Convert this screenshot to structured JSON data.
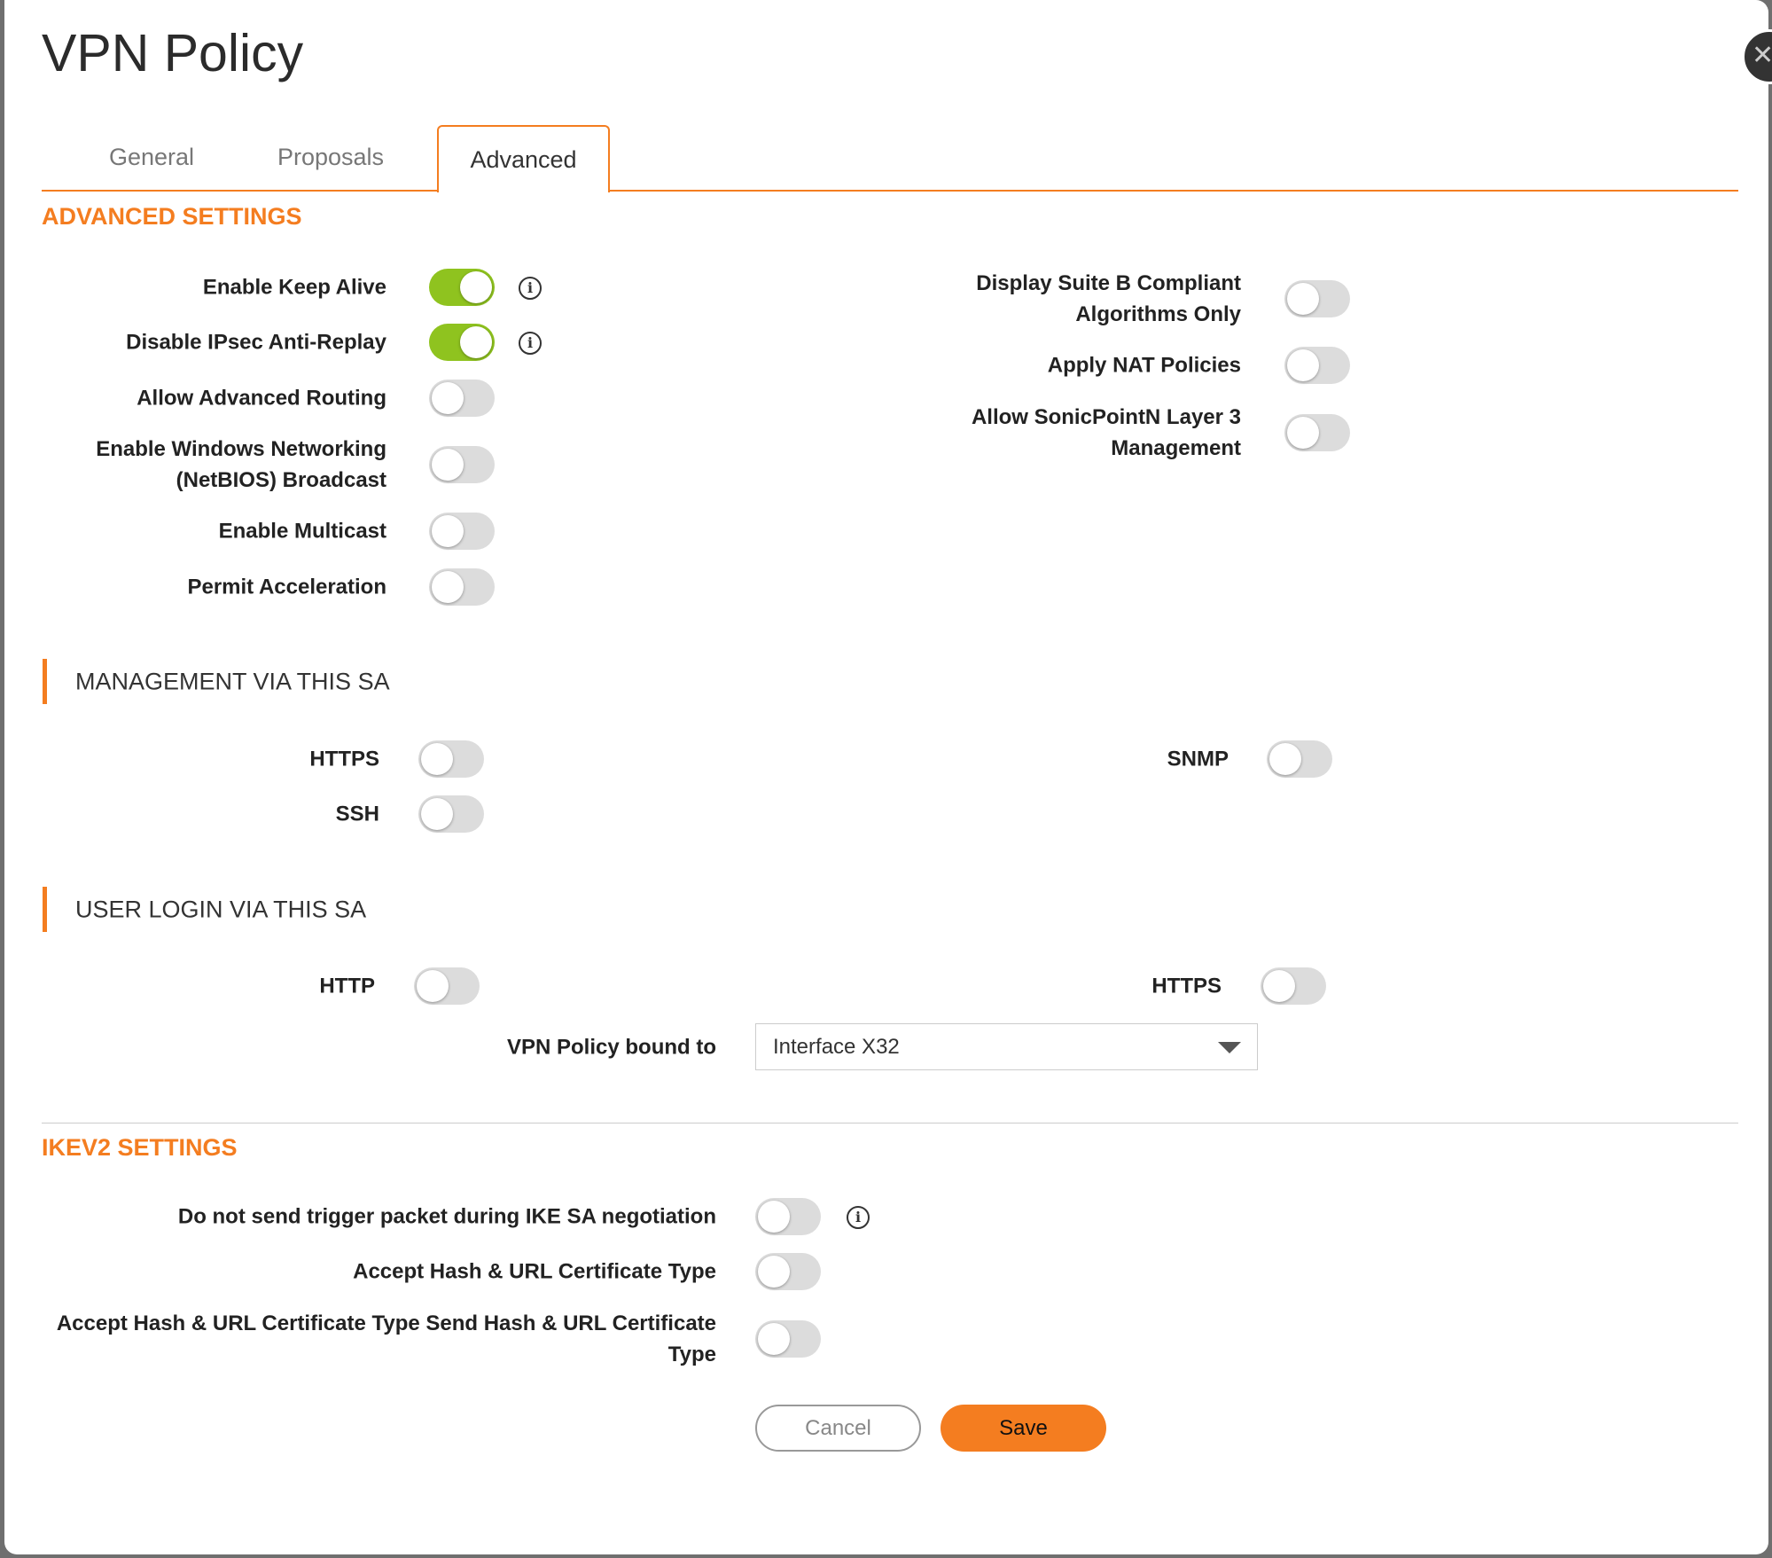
{
  "dialog": {
    "title": "VPN Policy",
    "close_icon": "close-icon"
  },
  "tabs": [
    {
      "label": "General",
      "active": false
    },
    {
      "label": "Proposals",
      "active": false
    },
    {
      "label": "Advanced",
      "active": true
    }
  ],
  "advanced": {
    "heading": "ADVANCED SETTINGS",
    "left": [
      {
        "label": "Enable Keep Alive",
        "on": true,
        "info": true
      },
      {
        "label": "Disable IPsec Anti-Replay",
        "on": true,
        "info": true
      },
      {
        "label": "Allow Advanced Routing",
        "on": false
      },
      {
        "label": "Enable Windows Networking (NetBIOS) Broadcast",
        "line1": "Enable Windows Networking",
        "line2": "(NetBIOS) Broadcast",
        "on": false
      },
      {
        "label": "Enable Multicast",
        "on": false
      },
      {
        "label": "Permit Acceleration",
        "on": false
      }
    ],
    "right": [
      {
        "line1": "Display Suite B Compliant",
        "line2": "Algorithms Only",
        "on": false
      },
      {
        "label": "Apply NAT Policies",
        "on": false
      },
      {
        "line1": "Allow SonicPointN Layer 3",
        "line2": "Management",
        "on": false
      }
    ]
  },
  "management": {
    "heading": "MANAGEMENT VIA THIS SA",
    "items": [
      {
        "label": "HTTPS",
        "on": false
      },
      {
        "label": "SSH",
        "on": false
      },
      {
        "label": "SNMP",
        "on": false
      }
    ]
  },
  "user_login": {
    "heading": "USER LOGIN VIA THIS SA",
    "items": [
      {
        "label": "HTTP",
        "on": false
      },
      {
        "label": "HTTPS",
        "on": false
      }
    ],
    "bound_label": "VPN Policy bound to",
    "bound_value": "Interface X32"
  },
  "ikev2": {
    "heading": "IKEV2 SETTINGS",
    "items": [
      {
        "label": "Do not send trigger packet during IKE SA negotiation",
        "on": false,
        "info": true
      },
      {
        "label": "Accept Hash & URL Certificate Type",
        "on": false
      },
      {
        "line1": "Accept Hash & URL Certificate Type Send Hash & URL Certificate",
        "line2": "Type",
        "on": false
      }
    ]
  },
  "buttons": {
    "cancel": "Cancel",
    "save": "Save"
  },
  "colors": {
    "accent": "#f47d20",
    "toggle_on": "#8fc31f",
    "toggle_off": "#dcdcdc"
  }
}
